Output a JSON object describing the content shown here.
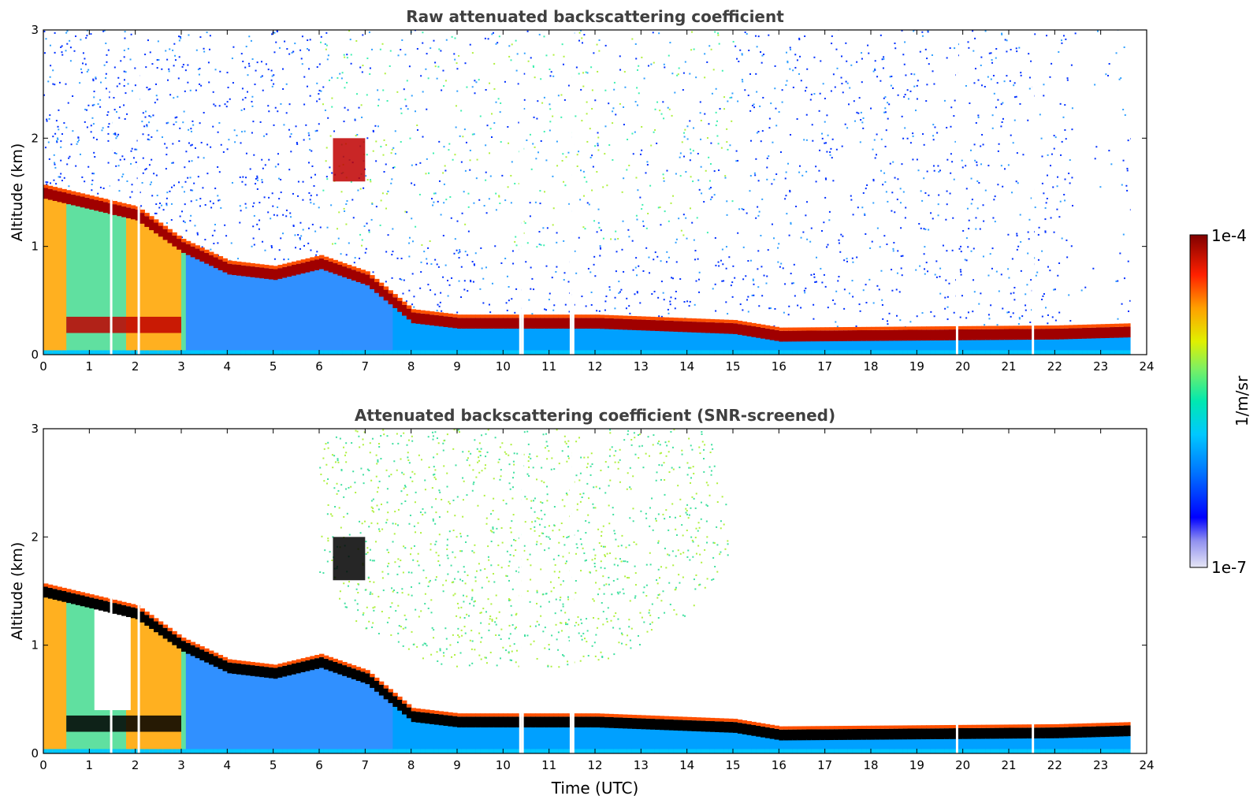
{
  "chart_data": [
    {
      "type": "heatmap",
      "title": "Raw attenuated backscattering coefficient",
      "xlabel": "",
      "ylabel": "Altitude (km)",
      "xlim": [
        0,
        24
      ],
      "ylim": [
        0,
        3
      ],
      "x_ticks": [
        "0",
        "1",
        "2",
        "3",
        "4",
        "5",
        "6",
        "7",
        "8",
        "9",
        "10",
        "11",
        "12",
        "13",
        "14",
        "15",
        "16",
        "17",
        "18",
        "19",
        "20",
        "21",
        "22",
        "23",
        "24"
      ],
      "y_ticks": [
        "0",
        "1",
        "2",
        "3"
      ],
      "data_end_time": 23.65,
      "features": {
        "surface_layer_top_km": [
          {
            "t": 0,
            "z": 1.5
          },
          {
            "t": 1,
            "z": 1.4
          },
          {
            "t": 2,
            "z": 1.3
          },
          {
            "t": 3,
            "z": 1.0
          },
          {
            "t": 4,
            "z": 0.8
          },
          {
            "t": 5,
            "z": 0.75
          },
          {
            "t": 6,
            "z": 0.85
          },
          {
            "t": 7,
            "z": 0.7
          },
          {
            "t": 8,
            "z": 0.35
          },
          {
            "t": 9,
            "z": 0.3
          },
          {
            "t": 12,
            "z": 0.3
          },
          {
            "t": 15,
            "z": 0.25
          },
          {
            "t": 16,
            "z": 0.18
          },
          {
            "t": 22,
            "z": 0.2
          },
          {
            "t": 23.65,
            "z": 0.22
          }
        ],
        "elevated_layers": [
          {
            "t0": 6.3,
            "t1": 7.0,
            "z0": 1.6,
            "z1": 2.0
          },
          {
            "t0": 0.5,
            "t1": 3.0,
            "z0": 0.2,
            "z1": 0.35
          }
        ],
        "noise_level": "high above boundary layer"
      }
    },
    {
      "type": "heatmap",
      "title": "Attenuated backscattering coefficient (SNR-screened)",
      "xlabel": "Time (UTC)",
      "ylabel": "Altitude (km)",
      "xlim": [
        0,
        24
      ],
      "ylim": [
        0,
        3
      ],
      "x_ticks": [
        "0",
        "1",
        "2",
        "3",
        "4",
        "5",
        "6",
        "7",
        "8",
        "9",
        "10",
        "11",
        "12",
        "13",
        "14",
        "15",
        "16",
        "17",
        "18",
        "19",
        "20",
        "21",
        "22",
        "23",
        "24"
      ],
      "y_ticks": [
        "0",
        "1",
        "2",
        "3"
      ],
      "data_end_time": 23.65,
      "features": {
        "noise_level": "screened; residual aerosol 6–15 UTC above 1 km"
      }
    }
  ],
  "colorbar": {
    "label": "1/m/sr",
    "max_label": "1e-4",
    "min_label": "1e-7",
    "scale": "log",
    "colors": [
      "#e6e6f5",
      "#b4b4ee",
      "#7878f0",
      "#0000ff",
      "#0070ff",
      "#00c8ff",
      "#00e8c0",
      "#40f080",
      "#b0f040",
      "#f0f000",
      "#ffc000",
      "#ff8000",
      "#ff3000",
      "#c80000",
      "#800000"
    ]
  }
}
